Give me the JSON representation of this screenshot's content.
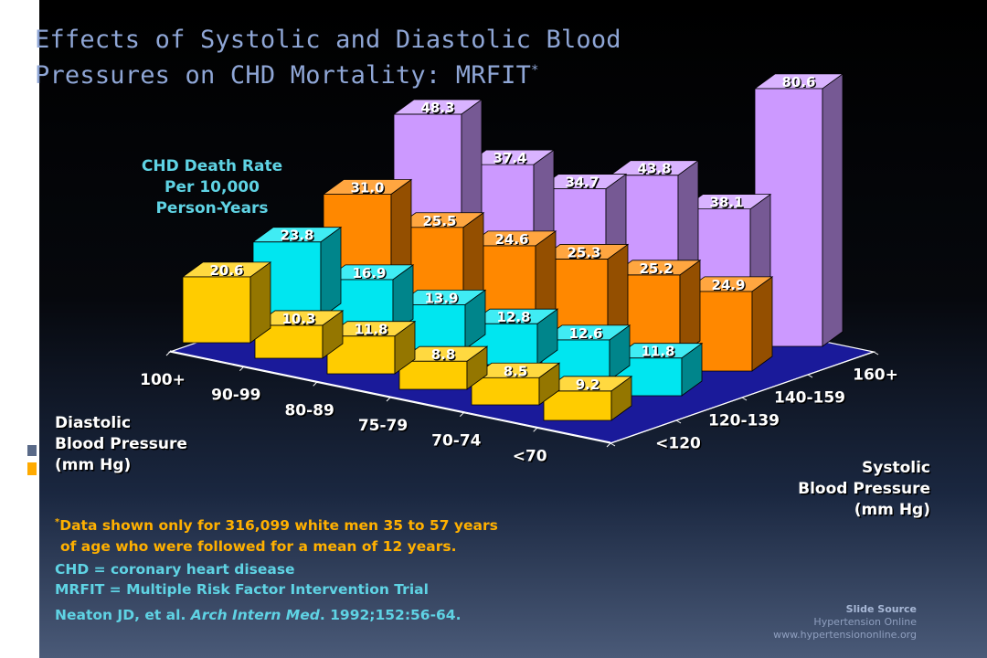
{
  "title": {
    "line1": "Effects of Systolic and Diastolic Blood",
    "line2": "Pressures on CHD Mortality:  MRFIT",
    "marker": "*"
  },
  "chart_data": {
    "type": "bar",
    "subtype": "3d-grouped",
    "ylabel_lines": [
      "CHD Death Rate",
      "Per 10,000",
      "Person-Years"
    ],
    "x_axis_title_lines": [
      "Diastolic",
      "Blood Pressure",
      "(mm Hg)"
    ],
    "depth_axis_title_lines": [
      "Systolic",
      "Blood Pressure",
      "(mm Hg)"
    ],
    "categories": [
      "100+",
      "90-99",
      "80-89",
      "75-79",
      "70-74",
      "<70"
    ],
    "series": [
      {
        "name": "<120",
        "color": "#ffcc00",
        "values": [
          20.6,
          10.3,
          11.8,
          8.8,
          8.5,
          9.2
        ]
      },
      {
        "name": "120-139",
        "color": "#00e6f0",
        "values": [
          23.8,
          16.9,
          13.9,
          12.8,
          12.6,
          11.8
        ]
      },
      {
        "name": "140-159",
        "color": "#ff8800",
        "values": [
          31.0,
          25.5,
          24.6,
          25.3,
          25.2,
          24.9
        ]
      },
      {
        "name": "160+",
        "color": "#cc99ff",
        "values": [
          48.3,
          37.4,
          34.7,
          43.8,
          38.1,
          80.6
        ]
      }
    ],
    "data_labels": [
      [
        "20.6",
        "10.3",
        "11.8",
        "8.8",
        "8.5",
        "9.2"
      ],
      [
        "23.8",
        "16.9",
        "13.9",
        "12.8",
        "12.6",
        "11.8"
      ],
      [
        "31.0",
        "25.5",
        "24.6",
        "25.3",
        "25.2",
        "24.9"
      ],
      [
        "48.3",
        "37.4",
        "34.7",
        "43.8",
        "38.1",
        "80.6"
      ]
    ],
    "grid": false,
    "legend": "none"
  },
  "footnotes": {
    "marker": "*",
    "line1": "Data shown only for 316,099 white men 35 to 57 years",
    "line2": "of age who were followed for a mean of 12 years.",
    "line3": "CHD = coronary heart disease",
    "line4": "MRFIT = Multiple Risk Factor Intervention Trial",
    "citation_author": "Neaton JD, et al.",
    "citation_journal": "Arch Intern Med",
    "citation_rest": ". 1992;152:56-64."
  },
  "source": {
    "title": "Slide Source",
    "name": "Hypertension Online",
    "url": "www.hypertensiononline.org"
  }
}
